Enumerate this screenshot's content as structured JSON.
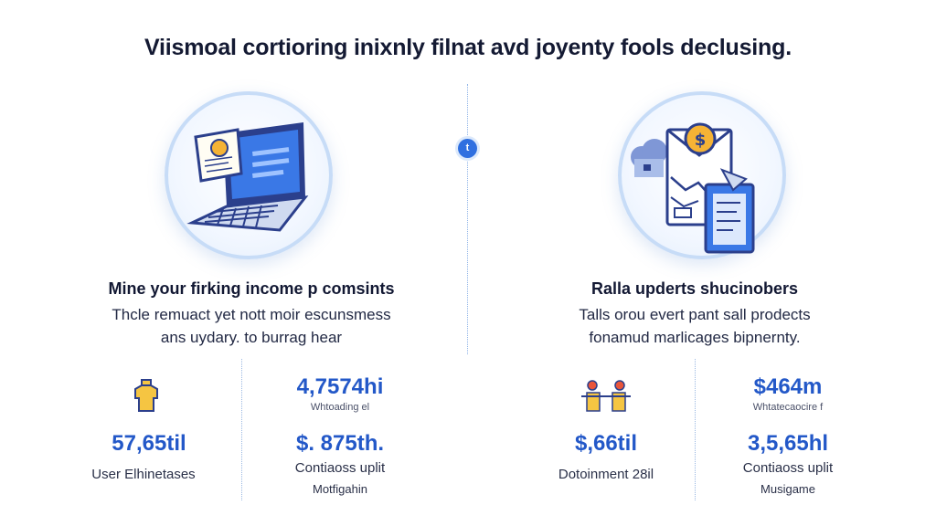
{
  "title": "Viismoal cortioring inixnly filnat avd joyenty fools declusing.",
  "center_marker": "t",
  "colors": {
    "accent": "#2358c8",
    "circle_border": "#c7dcf7",
    "coin": "#f5b335"
  },
  "left": {
    "icon": "laptop-icon",
    "heading": "Mine your firking income p comsints",
    "desc_line1": "Thcle remuact yet nott moir escunsmess",
    "desc_line2": "ans uydary. to burrag hear",
    "stats": {
      "icon_a": "shirt-icon",
      "value_a": "57,65til",
      "label_a": "User Elhinetases",
      "value_b": "4,7574hi",
      "sub_b": "Whtoading el",
      "value_c": "$. 875th.",
      "label_c1": "Contiaoss uplit",
      "label_c2": "Motfigahin"
    }
  },
  "right": {
    "icon": "money-envelope-icon",
    "heading": "Ralla upderts shucinobers",
    "desc_line1": "Talls orou evert pant sall prodects",
    "desc_line2": "fonamud marlicages bipnernty.",
    "stats": {
      "icon_a": "people-handshake-icon",
      "value_a": "$,66til",
      "label_a": "Dotoinment 28il",
      "value_b": "$464m",
      "sub_b": "Whtatecaocire f",
      "value_c": "3,5,65hl",
      "label_c1": "Contiaoss uplit",
      "label_c2": "Musigame"
    }
  }
}
